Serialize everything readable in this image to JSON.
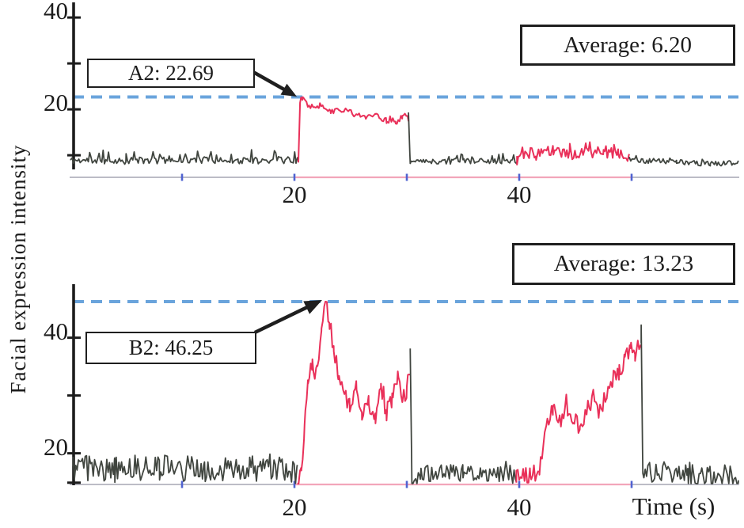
{
  "figure": {
    "y_axis_title": "Facial expression intensity",
    "x_axis_title": "Time (s)",
    "colors": {
      "signal_dark": "#40453f",
      "signal_red": "#e93059",
      "dashed_line": "#6aa4dc",
      "baseline_gray": "#bcbcc6",
      "baseline_pink": "#f2a6ba",
      "axis_tick_blue": "#5063d1",
      "ink": "#1c1c1c"
    }
  },
  "chart_data": [
    {
      "type": "line",
      "title": "",
      "xlabel": "",
      "ylabel": "Facial expression intensity",
      "xlim": [
        0,
        60
      ],
      "ylim": [
        5.2,
        43.3
      ],
      "grid": false,
      "legend": null,
      "average_annotation": {
        "label": "Average: 6.20",
        "value": 6.2
      },
      "peak_annotation": {
        "label": "A2: 22.69",
        "value": 22.69,
        "t": 20.7
      },
      "dashed_line_value": 22.69,
      "y_ticks": [
        {
          "v": 40,
          "label": "40"
        },
        {
          "v": 30,
          "label": ""
        },
        {
          "v": 20,
          "label": "20"
        },
        {
          "v": 10,
          "label": ""
        }
      ],
      "x_ticks": [
        {
          "t": 10,
          "label": ""
        },
        {
          "t": 20,
          "label": "20"
        },
        {
          "t": 30,
          "label": ""
        },
        {
          "t": 40,
          "label": "40"
        },
        {
          "t": 50,
          "label": ""
        }
      ],
      "baseline_highlight_t": [
        20,
        50
      ],
      "segments": [
        {
          "color": "dark",
          "seed": 11,
          "amp": 0.75,
          "spike_p": 0.1,
          "spike": 2.6,
          "keypoints": [
            [
              0.1,
              8.9
            ],
            [
              5,
              8.8
            ],
            [
              10,
              9.0
            ],
            [
              15,
              8.8
            ],
            [
              20.35,
              9.0
            ]
          ]
        },
        {
          "color": "red",
          "seed": 22,
          "amp": 0.6,
          "spike_p": 0.04,
          "spike": 1.2,
          "max": 22.69,
          "keypoints": [
            [
              20.35,
              8.9
            ],
            [
              20.5,
              21.5
            ],
            [
              20.75,
              22.69
            ],
            [
              21.3,
              20.6
            ],
            [
              22.2,
              20.9
            ],
            [
              23.2,
              19.6
            ],
            [
              24.4,
              19.9
            ],
            [
              25.3,
              19.0
            ],
            [
              26.3,
              18.4
            ],
            [
              27.2,
              18.8
            ],
            [
              28.2,
              17.5
            ],
            [
              29.0,
              17.2
            ],
            [
              29.6,
              18.4
            ],
            [
              30.15,
              17.9
            ]
          ]
        },
        {
          "color": "dark",
          "seed": 33,
          "amp": 0.6,
          "spike_p": 0.12,
          "spike": 2.0,
          "keypoints": [
            [
              30.15,
              17.9
            ],
            [
              30.3,
              8.1
            ],
            [
              31,
              8.6
            ],
            [
              35,
              8.7
            ],
            [
              39.8,
              8.8
            ]
          ]
        },
        {
          "color": "red",
          "seed": 44,
          "amp": 1.25,
          "spike_p": 0.12,
          "spike": 1.8,
          "keypoints": [
            [
              39.8,
              9.0
            ],
            [
              40.3,
              10.6
            ],
            [
              41.5,
              10.2
            ],
            [
              43,
              10.9
            ],
            [
              44.5,
              10.1
            ],
            [
              46,
              10.7
            ],
            [
              47.5,
              10.3
            ],
            [
              48.8,
              10.6
            ],
            [
              49.8,
              9.4
            ]
          ]
        },
        {
          "color": "dark",
          "seed": 55,
          "amp": 0.55,
          "spike_p": 0.06,
          "spike": 1.4,
          "keypoints": [
            [
              49.8,
              9.3
            ],
            [
              51,
              8.8
            ],
            [
              54,
              8.6
            ],
            [
              57,
              8.1
            ],
            [
              59.5,
              8.4
            ]
          ]
        }
      ]
    },
    {
      "type": "line",
      "title": "",
      "xlabel": "Time (s)",
      "ylabel": "Facial expression intensity",
      "xlim": [
        0,
        60
      ],
      "ylim": [
        14.6,
        49.3
      ],
      "grid": false,
      "legend": null,
      "average_annotation": {
        "label": "Average: 13.23",
        "value": 13.23
      },
      "peak_annotation": {
        "label": "B2: 46.25",
        "value": 46.25,
        "t": 22.75
      },
      "dashed_line_value": 46.25,
      "y_ticks": [
        {
          "v": 40,
          "label": "40"
        },
        {
          "v": 30,
          "label": ""
        },
        {
          "v": 20,
          "label": "20"
        },
        {
          "v": 14.9,
          "label": ""
        }
      ],
      "x_ticks": [
        {
          "t": 10,
          "label": ""
        },
        {
          "t": 20,
          "label": "20"
        },
        {
          "t": 30,
          "label": ""
        },
        {
          "t": 40,
          "label": "40"
        },
        {
          "t": 50,
          "label": ""
        }
      ],
      "baseline_highlight_t": [
        20,
        50
      ],
      "segments": [
        {
          "color": "dark",
          "seed": 61,
          "amp": 2.25,
          "spike_p": 0.05,
          "spike": 1.6,
          "keypoints": [
            [
              0.3,
              17.6
            ],
            [
              4,
              17.2
            ],
            [
              8,
              17.6
            ],
            [
              12,
              17.1
            ],
            [
              16,
              17.5
            ],
            [
              20.25,
              16.8
            ]
          ]
        },
        {
          "color": "red",
          "seed": 72,
          "amp": 1.5,
          "spike_p": 0.06,
          "spike": 2.0,
          "max": 46.25,
          "keypoints": [
            [
              20.25,
              14.8
            ],
            [
              20.6,
              16.5
            ],
            [
              20.9,
              25
            ],
            [
              21.2,
              33.5
            ],
            [
              21.6,
              35
            ],
            [
              22.0,
              33.8
            ],
            [
              22.4,
              40.5
            ],
            [
              22.75,
              46.25
            ],
            [
              23.1,
              43
            ],
            [
              23.5,
              38
            ],
            [
              23.9,
              33.5
            ],
            [
              24.4,
              30
            ],
            [
              24.9,
              28.2
            ],
            [
              25.5,
              31.5
            ],
            [
              26.0,
              27.2
            ],
            [
              26.6,
              28.8
            ],
            [
              27.2,
              26.2
            ],
            [
              27.7,
              31
            ],
            [
              28.2,
              27
            ],
            [
              28.7,
              29.5
            ],
            [
              29.2,
              33
            ],
            [
              29.6,
              29
            ],
            [
              30.0,
              31
            ],
            [
              30.3,
              35
            ]
          ]
        },
        {
          "color": "dark",
          "seed": 83,
          "amp": 1.5,
          "spike_p": 0.05,
          "spike": 1.6,
          "keypoints": [
            [
              30.3,
              37.5
            ],
            [
              30.45,
              14.8
            ],
            [
              31.2,
              16.4
            ],
            [
              35,
              16.6
            ],
            [
              39.75,
              16.0
            ]
          ]
        },
        {
          "color": "red",
          "seed": 94,
          "amp": 1.6,
          "spike_p": 0.06,
          "spike": 1.8,
          "keypoints": [
            [
              39.75,
              15.8
            ],
            [
              41,
              16.2
            ],
            [
              41.8,
              16.8
            ],
            [
              42.4,
              24
            ],
            [
              43,
              27.5
            ],
            [
              43.6,
              25.8
            ],
            [
              44.3,
              28
            ],
            [
              44.9,
              26.4
            ],
            [
              45.4,
              24.2
            ],
            [
              46,
              28.2
            ],
            [
              46.6,
              29.5
            ],
            [
              47.1,
              27
            ],
            [
              47.7,
              30
            ],
            [
              48.3,
              32.5
            ],
            [
              48.9,
              34
            ],
            [
              49.4,
              36.5
            ],
            [
              49.9,
              38
            ],
            [
              50.3,
              37
            ],
            [
              50.85,
              39.5
            ]
          ]
        },
        {
          "color": "dark",
          "seed": 105,
          "amp": 1.9,
          "spike_p": 0.05,
          "spike": 1.5,
          "keypoints": [
            [
              50.85,
              40.5
            ],
            [
              51.0,
              15.2
            ],
            [
              51.6,
              16.8
            ],
            [
              55,
              16.4
            ],
            [
              59.5,
              16.2
            ]
          ]
        }
      ]
    }
  ]
}
